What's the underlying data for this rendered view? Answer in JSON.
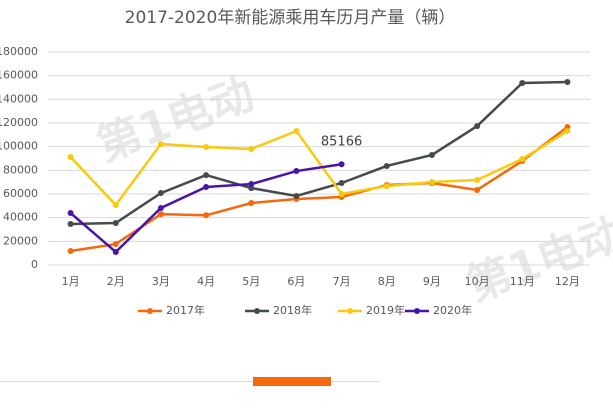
{
  "chart_data": {
    "type": "line",
    "title": "2017-2020年新能源乘用车历月产量（辆）",
    "categories": [
      "1月",
      "2月",
      "3月",
      "4月",
      "5月",
      "6月",
      "7月",
      "8月",
      "9月",
      "10月",
      "11月",
      "12月"
    ],
    "series": [
      {
        "name": "2017年",
        "color": "#f5690c",
        "values": [
          11800,
          17700,
          43000,
          42000,
          52400,
          55800,
          57500,
          67600,
          69300,
          63400,
          87900,
          116600
        ]
      },
      {
        "name": "2018年",
        "color": "#454a4c",
        "values": [
          34600,
          35500,
          60800,
          76000,
          65000,
          58300,
          69300,
          83700,
          93000,
          117400,
          153800,
          154600
        ]
      },
      {
        "name": "2019年",
        "color": "#f8ca0e",
        "values": [
          91300,
          50700,
          102200,
          99700,
          98000,
          113200,
          60000,
          66700,
          70100,
          71800,
          89600,
          113200
        ]
      },
      {
        "name": "2020年",
        "color": "#4a14a8",
        "values": [
          43900,
          11000,
          48200,
          65900,
          68400,
          79400,
          85166,
          null,
          null,
          null,
          null,
          null
        ]
      }
    ],
    "ylim": [
      0,
      180000
    ],
    "yticks": [
      0,
      20000,
      40000,
      60000,
      80000,
      100000,
      120000,
      140000,
      160000,
      180000
    ],
    "grid": true,
    "legend": "bottom",
    "watermark": "第1电动"
  }
}
